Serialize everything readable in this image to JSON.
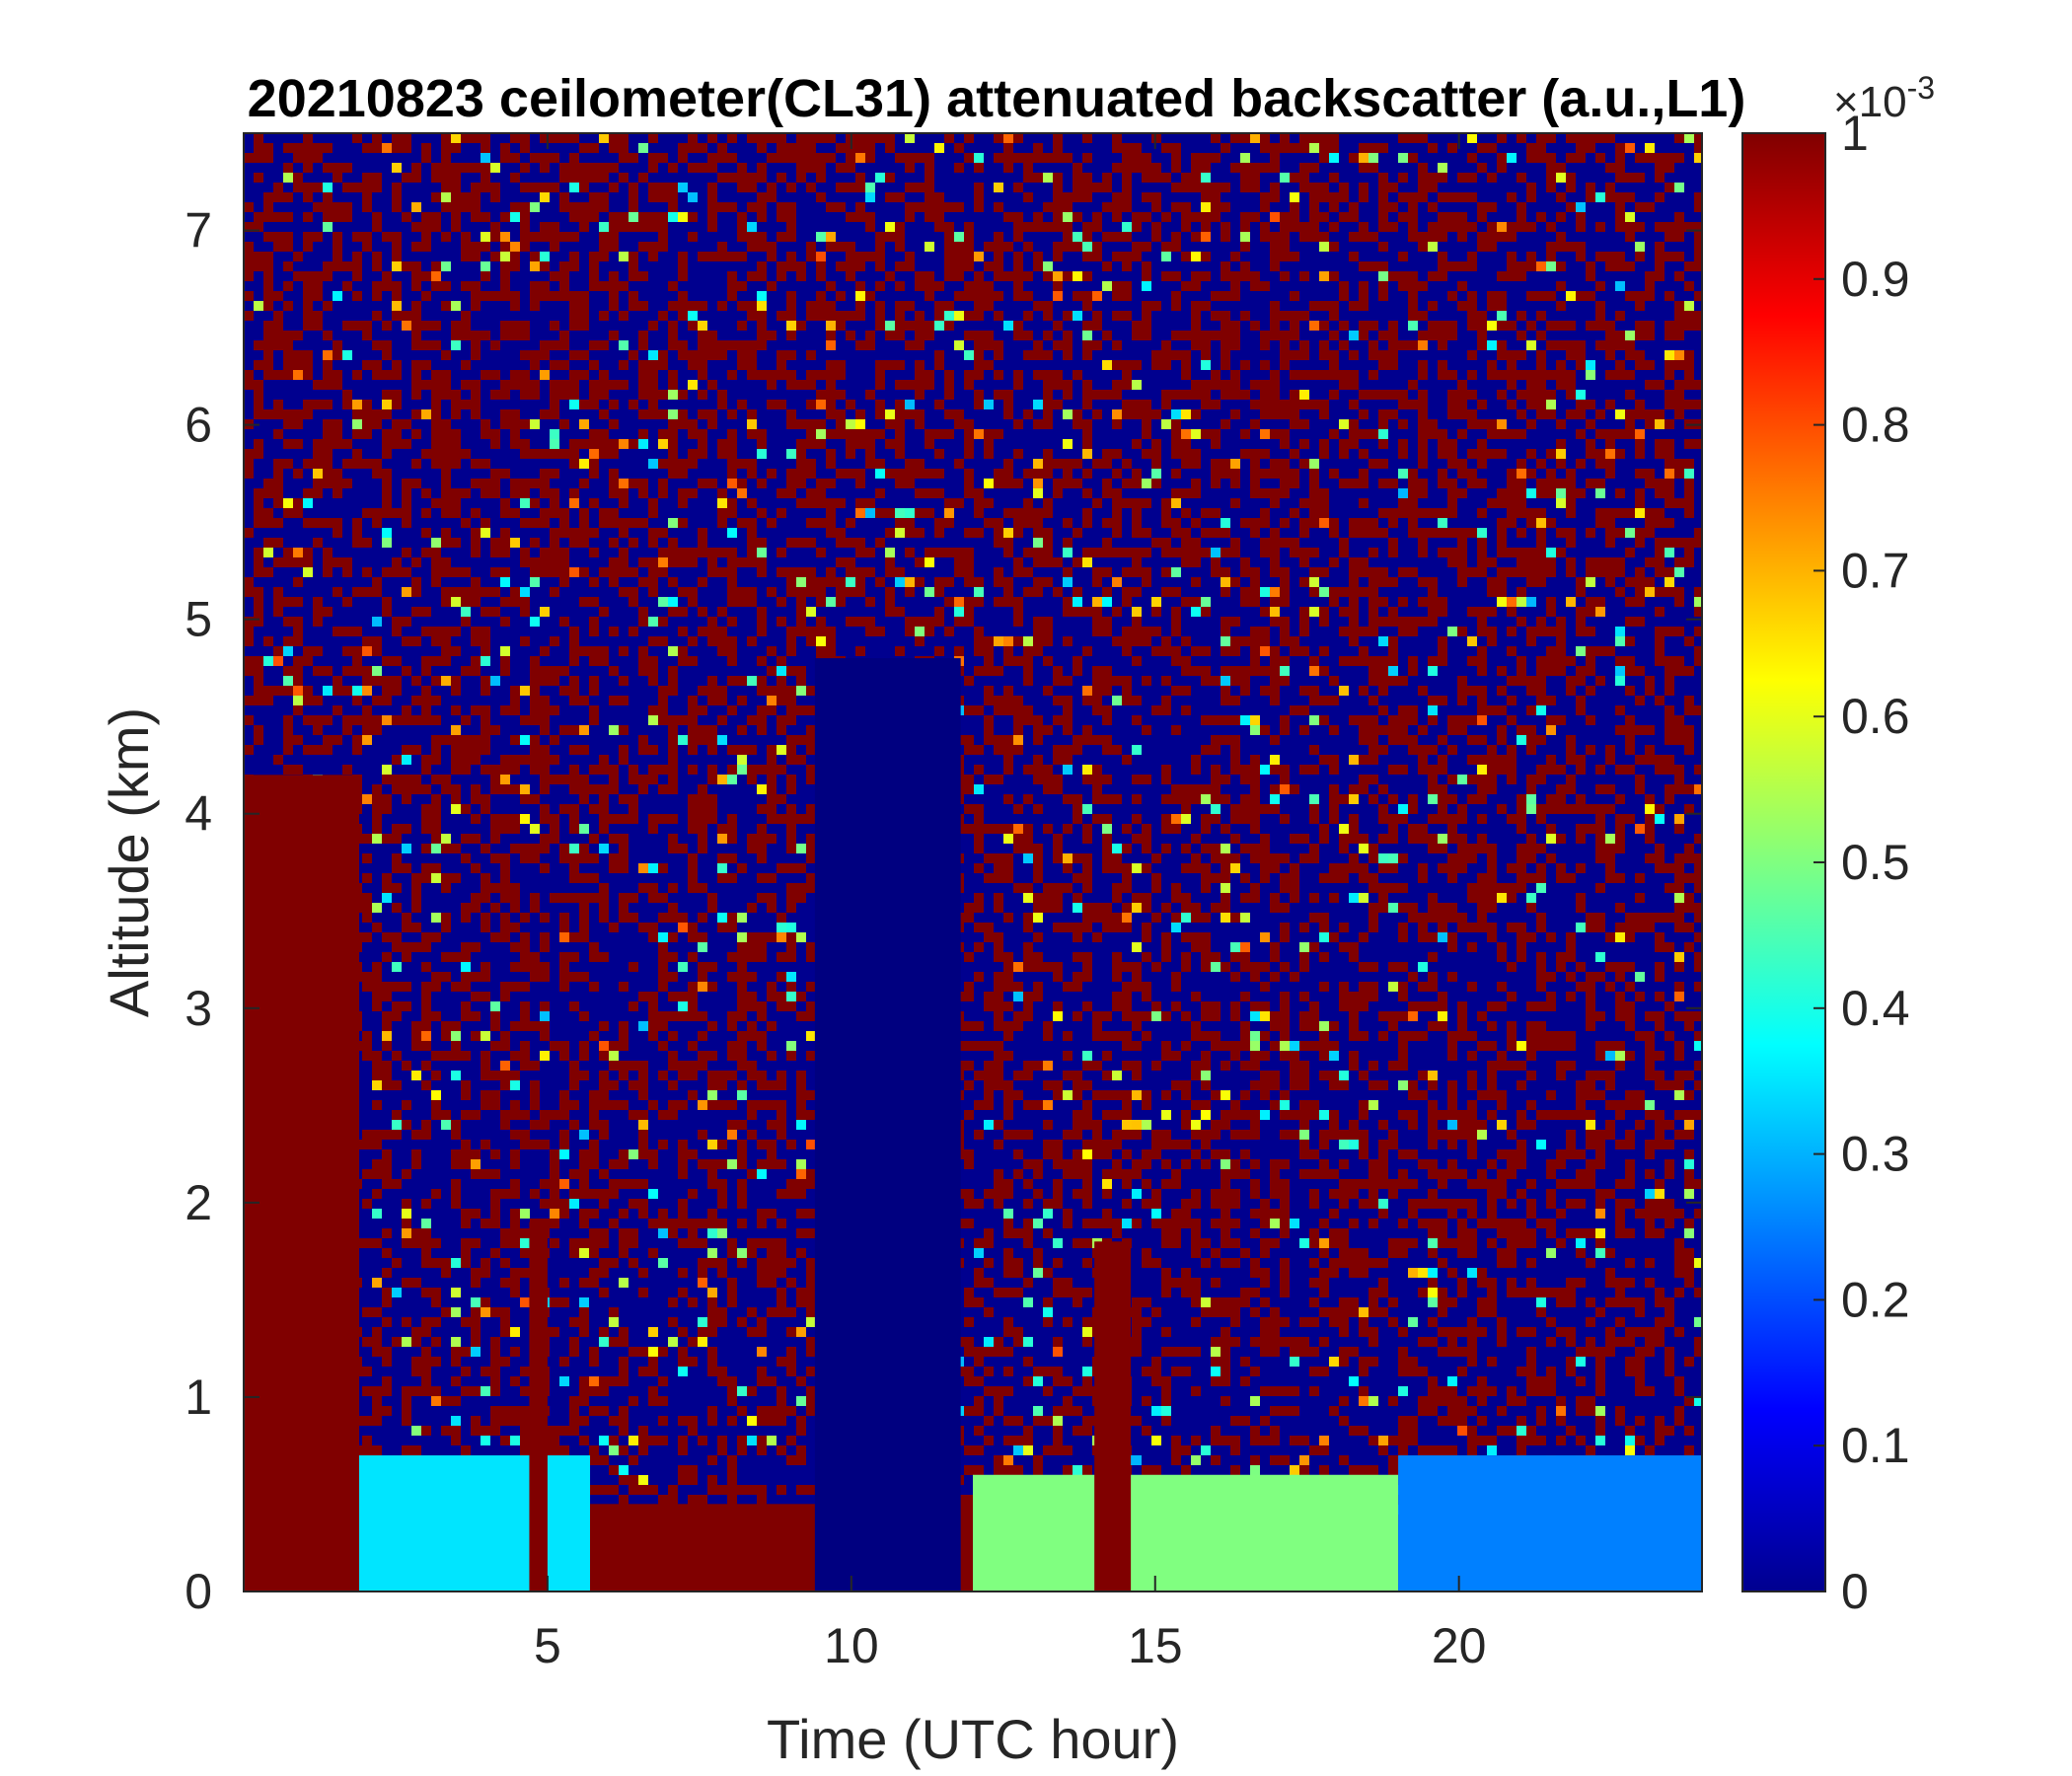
{
  "chart_data": {
    "type": "heatmap",
    "title": "20210823 ceilometer(CL31) attenuated backscatter (a.u.,L1)",
    "xlabel": "Time (UTC hour)",
    "ylabel": "Altitude (km)",
    "xlim": [
      0,
      24
    ],
    "ylim": [
      0,
      7.5
    ],
    "x_ticks": [
      5,
      10,
      15,
      20
    ],
    "y_ticks": [
      0,
      1,
      2,
      3,
      4,
      5,
      6,
      7
    ],
    "colormap": "jet",
    "colorbar": {
      "min": 0,
      "max": 1,
      "ticks": [
        0,
        0.1,
        0.2,
        0.3,
        0.4,
        0.5,
        0.6,
        0.7,
        0.8,
        0.9,
        1
      ],
      "exponent_label": "×10",
      "exponent_power": "-3"
    },
    "features": [
      {
        "x_range": [
          0,
          1.9
        ],
        "alt_top_km": 4.2,
        "value": 1
      },
      {
        "x_range": [
          1.9,
          5.7
        ],
        "alt_top_km": 0.7,
        "value": 0.35
      },
      {
        "x_range": [
          4.7,
          5.0
        ],
        "alt_top_km": 1.9,
        "value": 1
      },
      {
        "x_range": [
          5.7,
          12.0
        ],
        "alt_top_km": 0.45,
        "value": 1
      },
      {
        "x_range": [
          9.4,
          11.8
        ],
        "alt_top_km": 4.8,
        "value": 0
      },
      {
        "x_range": [
          12.0,
          19.0
        ],
        "alt_top_km": 0.6,
        "value": 0.5
      },
      {
        "x_range": [
          19.0,
          24.0
        ],
        "alt_top_km": 0.7,
        "value": 0.25
      },
      {
        "x_range": [
          14.0,
          14.6
        ],
        "alt_top_km": 1.8,
        "value": 1
      }
    ]
  }
}
